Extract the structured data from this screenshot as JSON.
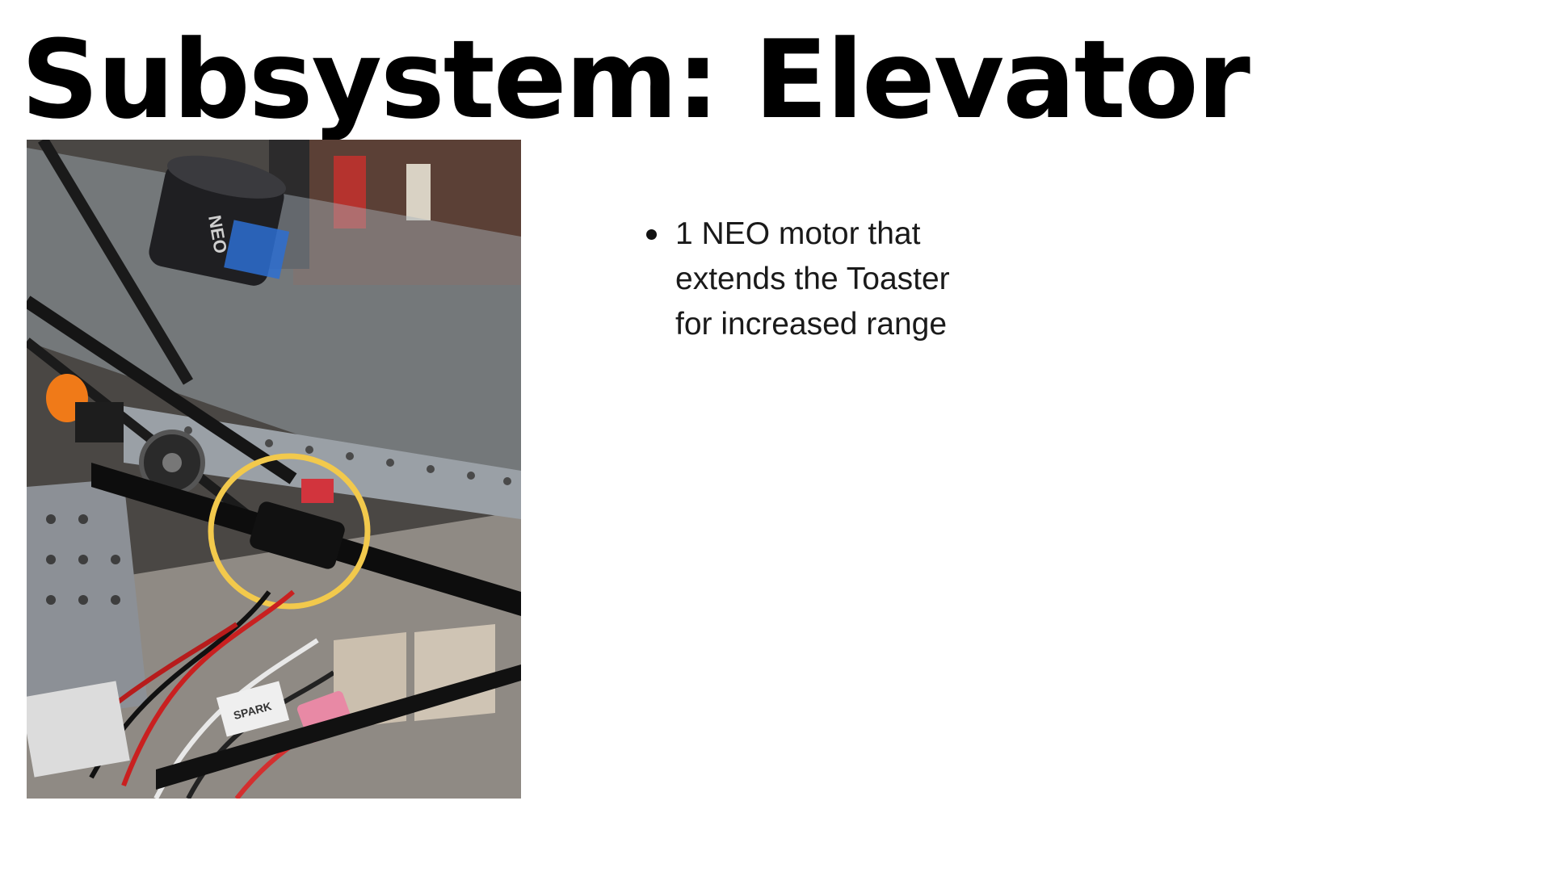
{
  "slide": {
    "title": "Subsystem: Elevator",
    "bullets": [
      "1 NEO motor that extends the Toaster for increased range"
    ],
    "photo": {
      "highlight_color": "#f2c94c",
      "motor_label": "NEO",
      "controller_label": "SPARK"
    }
  }
}
